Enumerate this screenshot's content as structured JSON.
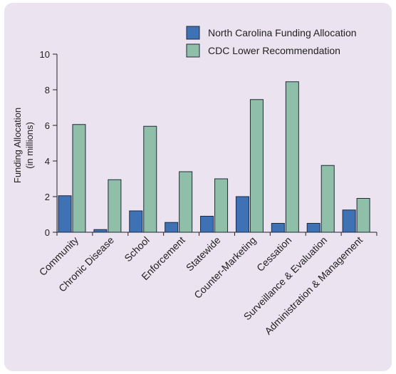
{
  "chart_data": {
    "type": "bar",
    "title": "",
    "xlabel": "",
    "ylabel": "Funding Allocation",
    "ylabel_sub": "(in millions)",
    "ylim": [
      0,
      10
    ],
    "yticks": [
      0,
      2,
      4,
      6,
      8,
      10
    ],
    "grid": false,
    "legend_position": "top-right",
    "categories": [
      "Community",
      "Chronic Disease",
      "School",
      "Enforcement",
      "Statewide",
      "Counter-Marketing",
      "Cessation",
      "Surveillance & Evaluation",
      "Administration & Management"
    ],
    "series": [
      {
        "name": "North Carolina Funding Allocation",
        "color": "#3e72b4",
        "values": [
          2.05,
          0.15,
          1.2,
          0.55,
          0.9,
          2.0,
          0.5,
          0.5,
          1.25
        ]
      },
      {
        "name": "CDC Lower Recommendation",
        "color": "#8fbfa8",
        "values": [
          6.05,
          2.95,
          5.95,
          3.4,
          3.0,
          7.45,
          8.45,
          3.75,
          1.9
        ]
      }
    ]
  }
}
